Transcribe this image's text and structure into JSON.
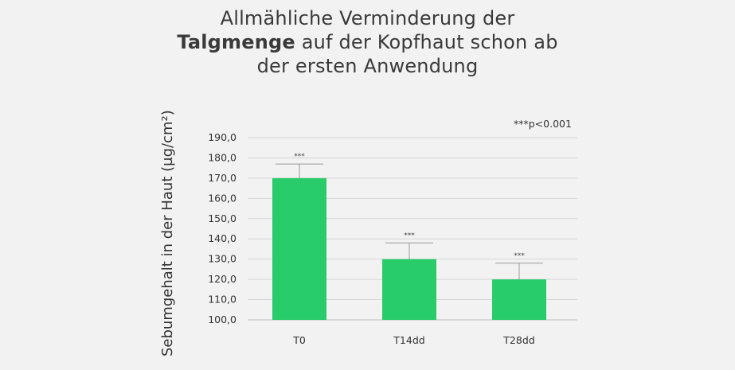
{
  "title": {
    "line1": "Allmähliche Verminderung der",
    "line2_bold": "Talgmenge",
    "line2_rest": " auf der Kopfhaut schon ab",
    "line3": "der ersten Anwendung"
  },
  "chart_data": {
    "type": "bar",
    "title": "Allmähliche Verminderung der Talgmenge auf der Kopfhaut schon ab der ersten Anwendung",
    "xlabel": "",
    "ylabel": "Sebumgehalt in der Haut (µg/cm²)",
    "categories": [
      "T0",
      "T14dd",
      "T28dd"
    ],
    "values": [
      170.0,
      130.0,
      120.0
    ],
    "error_upper": [
      177.0,
      138.0,
      128.0
    ],
    "significance": [
      "***",
      "***",
      "***"
    ],
    "annotation": "***p<0.001",
    "ylim": [
      100.0,
      190.0
    ],
    "yticks": [
      "190,0",
      "180,0",
      "170,0",
      "160,0",
      "150,0",
      "140,0",
      "130,0",
      "120,0",
      "110,0",
      "100,0"
    ],
    "grid": true,
    "bar_color": "#29cc6b"
  }
}
